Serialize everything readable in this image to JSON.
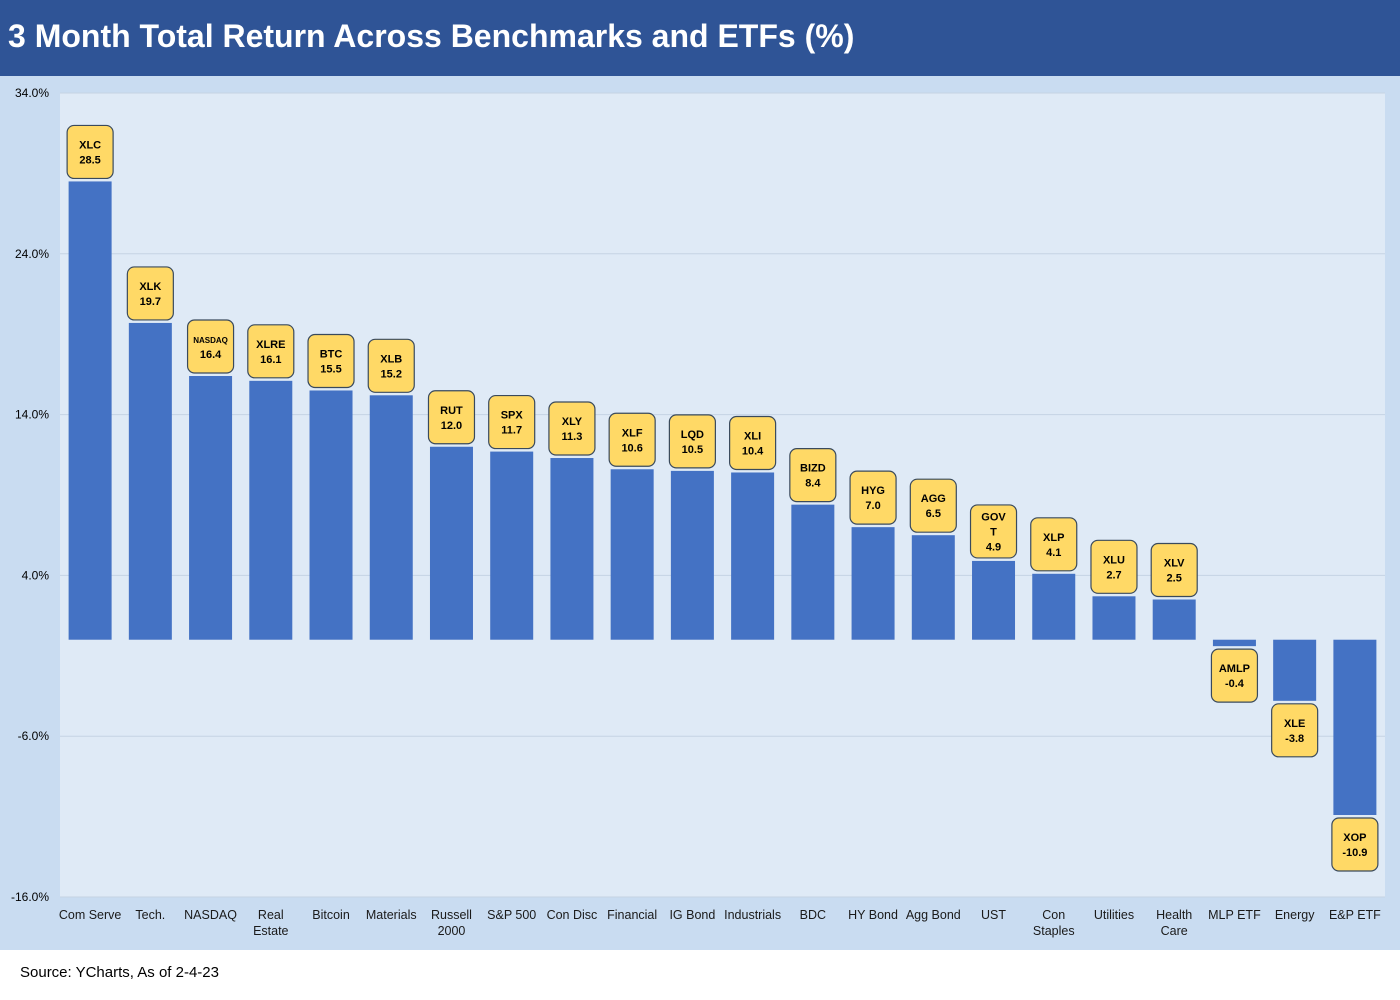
{
  "title": "3 Month Total Return Across Benchmarks and ETFs (%)",
  "source": "Source: YCharts, As of 2-4-23",
  "colors": {
    "header": "#2f5496",
    "bar": "#4472c4",
    "label_fill": "#ffd966",
    "label_stroke": "#3a4a5c",
    "plot_bg": "#dfeaf6",
    "outer_bg": "#c9dcf1"
  },
  "chart_data": {
    "type": "bar",
    "title": "3 Month Total Return Across Benchmarks and ETFs (%)",
    "xlabel": "",
    "ylabel": "",
    "ylim": [
      -16,
      34
    ],
    "yticks": [
      34,
      24,
      14,
      4,
      -6,
      -16
    ],
    "ytick_labels": [
      "34.0%",
      "24.0%",
      "14.0%",
      "4.0%",
      "-6.0%",
      "-16.0%"
    ],
    "grid": true,
    "categories": [
      [
        "Com Serve"
      ],
      [
        "Tech."
      ],
      [
        "NASDAQ"
      ],
      [
        "Real",
        "Estate"
      ],
      [
        "Bitcoin"
      ],
      [
        "Materials"
      ],
      [
        "Russell",
        "2000"
      ],
      [
        "S&P 500"
      ],
      [
        "Con Disc"
      ],
      [
        "Financial"
      ],
      [
        "IG Bond"
      ],
      [
        "Industrials"
      ],
      [
        "BDC"
      ],
      [
        "HY Bond"
      ],
      [
        "Agg Bond"
      ],
      [
        "UST"
      ],
      [
        "Con",
        "Staples"
      ],
      [
        "Utilities"
      ],
      [
        "Health",
        "Care"
      ],
      [
        "MLP ETF"
      ],
      [
        "Energy"
      ],
      [
        "E&P ETF"
      ]
    ],
    "tickers": [
      "XLC",
      "XLK",
      "NASDAQ",
      "XLRE",
      "BTC",
      "XLB",
      "RUT",
      "SPX",
      "XLY",
      "XLF",
      "LQD",
      "XLI",
      "BIZD",
      "HYG",
      "AGG",
      "GOV|T",
      "XLP",
      "XLU",
      "XLV",
      "AMLP",
      "XLE",
      "XOP"
    ],
    "value_labels": [
      "28.5",
      "19.7",
      "16.4",
      "16.1",
      "15.5",
      "15.2",
      "12.0",
      "11.7",
      "11.3",
      "10.6",
      "10.5",
      "10.4",
      "8.4",
      "7.0",
      "6.5",
      "4.9",
      "4.1",
      "2.7",
      "2.5",
      "-0.4",
      "-3.8",
      "-10.9"
    ],
    "values": [
      28.5,
      19.7,
      16.4,
      16.1,
      15.5,
      15.2,
      12.0,
      11.7,
      11.3,
      10.6,
      10.5,
      10.4,
      8.4,
      7.0,
      6.5,
      4.9,
      4.1,
      2.7,
      2.5,
      -0.4,
      -3.8,
      -10.9
    ]
  }
}
